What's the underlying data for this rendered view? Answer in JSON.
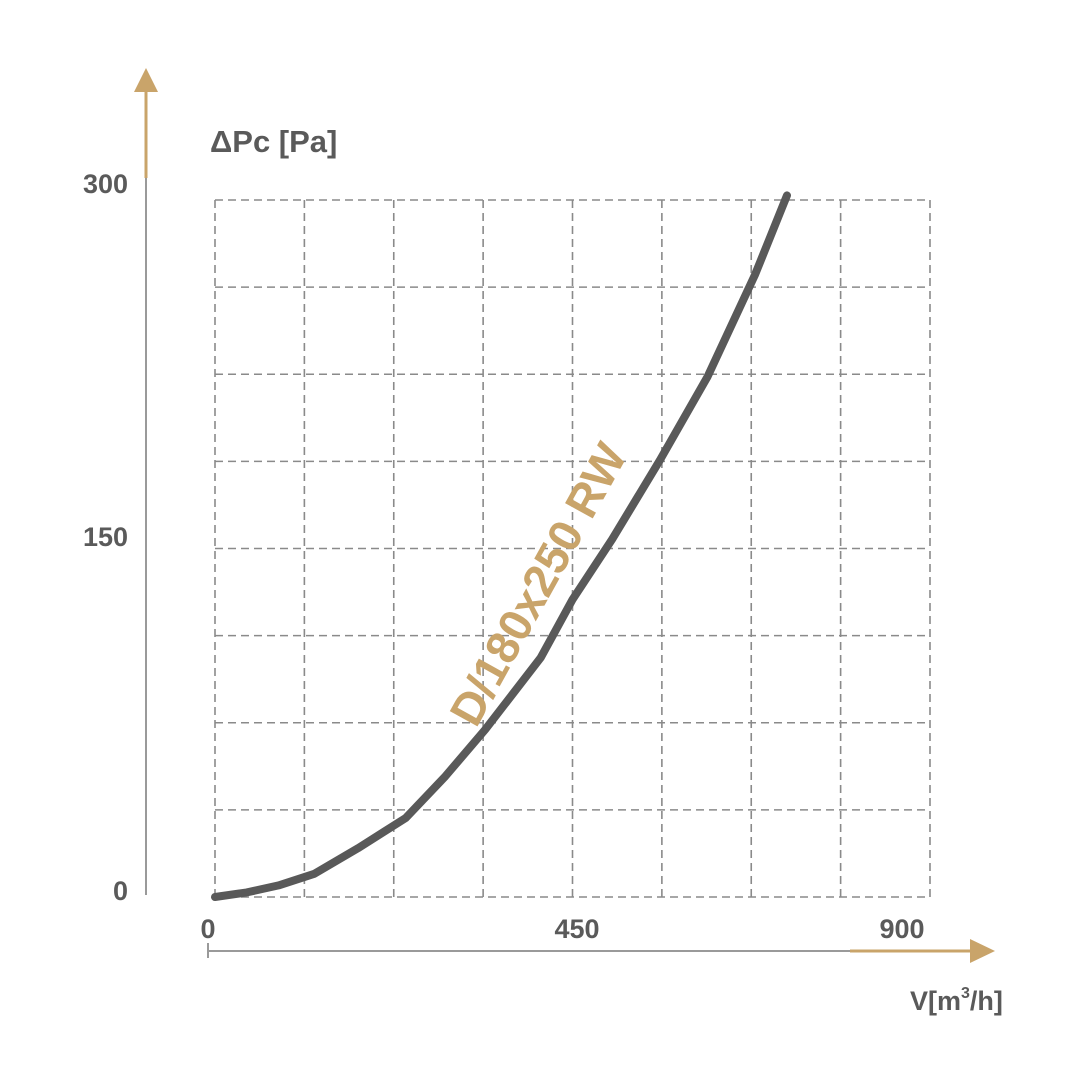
{
  "chart_data": {
    "type": "line",
    "ylabel": "ΔPc [Pa]",
    "xlabel": "V[m³/h]",
    "xlabel_parts": {
      "main": "V[m",
      "sup": "3",
      "tail": "/h]"
    },
    "xlim": [
      0,
      900
    ],
    "ylim": [
      0,
      300
    ],
    "x_ticks": [
      {
        "value": 0,
        "label": "0"
      },
      {
        "value": 450,
        "label": "450"
      },
      {
        "value": 900,
        "label": "900"
      }
    ],
    "y_ticks": [
      {
        "value": 0,
        "label": "0"
      },
      {
        "value": 150,
        "label": "150"
      },
      {
        "value": 300,
        "label": "300"
      }
    ],
    "grid": true,
    "grid_divisions": {
      "x": 8,
      "y": 8
    },
    "series": [
      {
        "name": "D/180x250 RW",
        "points": [
          [
            0,
            0
          ],
          [
            40,
            2
          ],
          [
            80,
            5
          ],
          [
            125,
            10
          ],
          [
            180,
            21
          ],
          [
            240,
            34
          ],
          [
            290,
            52
          ],
          [
            340,
            72
          ],
          [
            410,
            103
          ],
          [
            450,
            128
          ],
          [
            500,
            154
          ],
          [
            560,
            188
          ],
          [
            620,
            224
          ],
          [
            680,
            268
          ],
          [
            720,
            302
          ]
        ]
      }
    ],
    "colors": {
      "curve": "#595959",
      "grid": "#8a8a8a",
      "axis": "#9a9a9a",
      "arrow": "#c9a46a",
      "text": "#5a5a5a",
      "series_label": "#c9a46a"
    }
  }
}
